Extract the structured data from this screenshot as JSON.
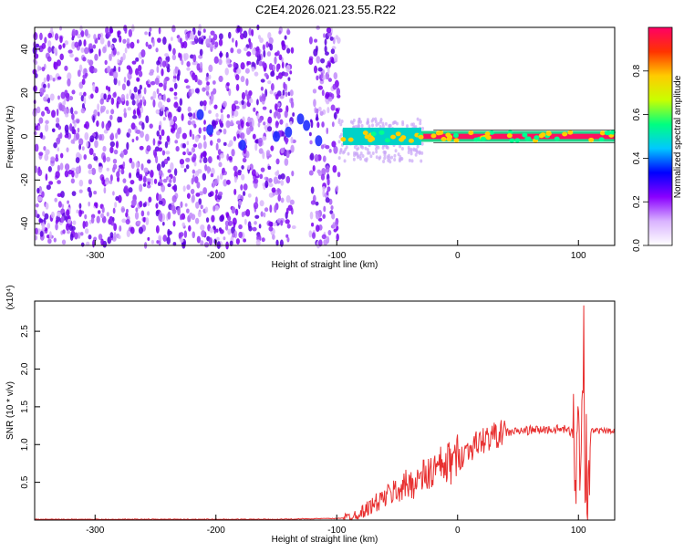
{
  "title": "C2E4.2026.021.23.55.R22",
  "spectrogram": {
    "xlabel": "Height of straight line (km)",
    "ylabel": "Frequency (Hz)",
    "xlim": [
      -350,
      130
    ],
    "ylim": [
      -50,
      50
    ],
    "xticks": [
      "-300",
      "-200",
      "-100",
      "0",
      "100"
    ],
    "yticks": [
      "-40",
      "-20",
      "0",
      "20",
      "40"
    ]
  },
  "colorbar": {
    "label": "Normalized spectral amplitude",
    "ticks": [
      "0.0",
      "0.2",
      "0.4",
      "0.6",
      "0.8"
    ],
    "colors": [
      "#ffffff",
      "#d9b3ff",
      "#8a00ff",
      "#0000ff",
      "#00c8ff",
      "#00ff80",
      "#c8ff00",
      "#ffcc00",
      "#ff3300",
      "#ff0066"
    ]
  },
  "chart_data": [
    {
      "type": "heatmap",
      "title": "C2E4.2026.021.23.55.R22",
      "xlabel": "Height of straight line (km)",
      "ylabel": "Frequency (Hz)",
      "xlim": [
        -350,
        130
      ],
      "ylim": [
        -50,
        50
      ],
      "note_series": [
        {
          "x": [
            -350,
            -100
          ],
          "band": [
            -50,
            50
          ],
          "level": 0.12
        },
        {
          "x": [
            -95,
            -30
          ],
          "center_hz": 0,
          "level": 0.45
        },
        {
          "x": [
            -30,
            100
          ],
          "center_hz": 0,
          "level": 0.95
        },
        {
          "x": [
            100,
            130
          ],
          "center_hz": 0,
          "level": 0.95
        }
      ]
    },
    {
      "type": "line",
      "xlabel": "Height of straight line (km)",
      "ylabel": "SNR (10 * v/v)",
      "multiplier": "(x10⁴)",
      "xlim": [
        -350,
        130
      ],
      "ylim": [
        0,
        2.9
      ],
      "yticks": [
        "0.5",
        "1.0",
        "1.5",
        "2.0",
        "2.5"
      ],
      "xticks": [
        "-300",
        "-200",
        "-100",
        "0",
        "100"
      ],
      "color": "#e83030",
      "x": [
        -350,
        -300,
        -250,
        -200,
        -150,
        -110,
        -100,
        -90,
        -80,
        -70,
        -60,
        -50,
        -40,
        -30,
        -20,
        -10,
        0,
        10,
        20,
        30,
        40,
        60,
        80,
        90,
        95,
        100,
        103,
        105,
        108,
        110,
        120,
        130
      ],
      "values": [
        0.01,
        0.01,
        0.01,
        0.01,
        0.01,
        0.02,
        0.02,
        0.04,
        0.1,
        0.2,
        0.3,
        0.4,
        0.48,
        0.55,
        0.65,
        0.72,
        0.82,
        0.95,
        1.05,
        1.12,
        1.16,
        1.19,
        1.2,
        1.2,
        1.15,
        0.9,
        1.6,
        1.0,
        0.4,
        1.18,
        1.18,
        1.17
      ]
    }
  ]
}
